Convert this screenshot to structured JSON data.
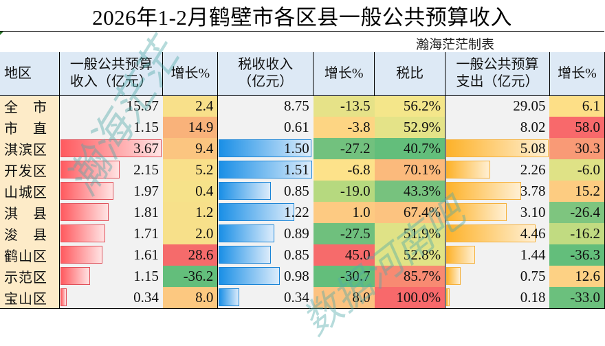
{
  "title": "2026年1-2月鹤壁市各区县一般公共预算收入",
  "author": "瀚海茫茫制表",
  "watermarks": [
    "瀚海茫茫",
    "数据河南吧"
  ],
  "headers": {
    "region": "地区",
    "revenue": "一般公共预算收入（亿元）",
    "revenue_growth": "增长%",
    "tax": "税收收入（亿元）",
    "tax_growth": "增长%",
    "tax_ratio": "税比",
    "expenditure": "一般公共预算支出（亿元）",
    "expenditure_growth": "增长%"
  },
  "rows": [
    {
      "region": "全　市",
      "revenue": "15.57",
      "revenue_growth": "2.4",
      "tax": "8.75",
      "tax_growth": "-13.5",
      "tax_ratio": "56.2%",
      "expenditure": "29.05",
      "expenditure_growth": "6.1"
    },
    {
      "region": "市　直",
      "revenue": "1.15",
      "revenue_growth": "14.9",
      "tax": "0.61",
      "tax_growth": "-3.8",
      "tax_ratio": "52.9%",
      "expenditure": "8.02",
      "expenditure_growth": "58.0"
    },
    {
      "region": "淇滨区",
      "revenue": "3.67",
      "revenue_growth": "9.4",
      "tax": "1.50",
      "tax_growth": "-27.2",
      "tax_ratio": "40.7%",
      "expenditure": "5.08",
      "expenditure_growth": "30.3"
    },
    {
      "region": "开发区",
      "revenue": "2.15",
      "revenue_growth": "5.2",
      "tax": "1.51",
      "tax_growth": "-6.8",
      "tax_ratio": "70.1%",
      "expenditure": "2.26",
      "expenditure_growth": "-6.0"
    },
    {
      "region": "山城区",
      "revenue": "1.97",
      "revenue_growth": "0.4",
      "tax": "0.85",
      "tax_growth": "-19.0",
      "tax_ratio": "43.3%",
      "expenditure": "3.78",
      "expenditure_growth": "15.2"
    },
    {
      "region": "淇　县",
      "revenue": "1.81",
      "revenue_growth": "1.2",
      "tax": "1.22",
      "tax_growth": "1.0",
      "tax_ratio": "67.4%",
      "expenditure": "3.10",
      "expenditure_growth": "-26.4"
    },
    {
      "region": "浚　县",
      "revenue": "1.71",
      "revenue_growth": "2.0",
      "tax": "0.89",
      "tax_growth": "-27.5",
      "tax_ratio": "51.9%",
      "expenditure": "4.46",
      "expenditure_growth": "-16.2"
    },
    {
      "region": "鹤山区",
      "revenue": "1.61",
      "revenue_growth": "28.6",
      "tax": "0.85",
      "tax_growth": "45.0",
      "tax_ratio": "52.8%",
      "expenditure": "1.44",
      "expenditure_growth": "-36.3"
    },
    {
      "region": "示范区",
      "revenue": "1.15",
      "revenue_growth": "-36.2",
      "tax": "0.98",
      "tax_growth": "-30.7",
      "tax_ratio": "85.7%",
      "expenditure": "0.75",
      "expenditure_growth": "12.6"
    },
    {
      "region": "宝山区",
      "revenue": "0.34",
      "revenue_growth": "8.0",
      "tax": "0.34",
      "tax_growth": "8.0",
      "tax_ratio": "100.0%",
      "expenditure": "0.18",
      "expenditure_growth": "-33.0"
    }
  ],
  "bars": {
    "revenue_pct": [
      null,
      null,
      100,
      58,
      52,
      47,
      44,
      41,
      29,
      6
    ],
    "tax_pct": [
      null,
      null,
      99,
      100,
      56,
      81,
      59,
      56,
      65,
      22
    ],
    "expenditure_pct": [
      null,
      null,
      100,
      43,
      73,
      59,
      87,
      28,
      14,
      3
    ]
  },
  "colors": {
    "revenue_growth": [
      "#f8e08a",
      "#f9b27a",
      "#fbc580",
      "#f9e08a",
      "#f6e28a",
      "#f7e08a",
      "#f7e08a",
      "#f56b6b",
      "#63be7b",
      "#fcc880"
    ],
    "tax_growth": [
      "#e6e288",
      "#fdd583",
      "#72c17e",
      "#fde28a",
      "#b6d97f",
      "#fdca82",
      "#6fc07d",
      "#f66b6b",
      "#63be7b",
      "#fcc280"
    ],
    "tax_ratio": [
      "#f4e68a",
      "#e4e388",
      "#63be7b",
      "#fbba7c",
      "#77c27e",
      "#fcc380",
      "#dfe286",
      "#e1e386",
      "#f88a72",
      "#f8696b"
    ],
    "expenditure_growth": [
      "#fddf87",
      "#f8696b",
      "#f99a76",
      "#dfe286",
      "#fdcc81",
      "#7ec57f",
      "#c1db81",
      "#63be7b",
      "#fdd184",
      "#6bc07d"
    ]
  }
}
